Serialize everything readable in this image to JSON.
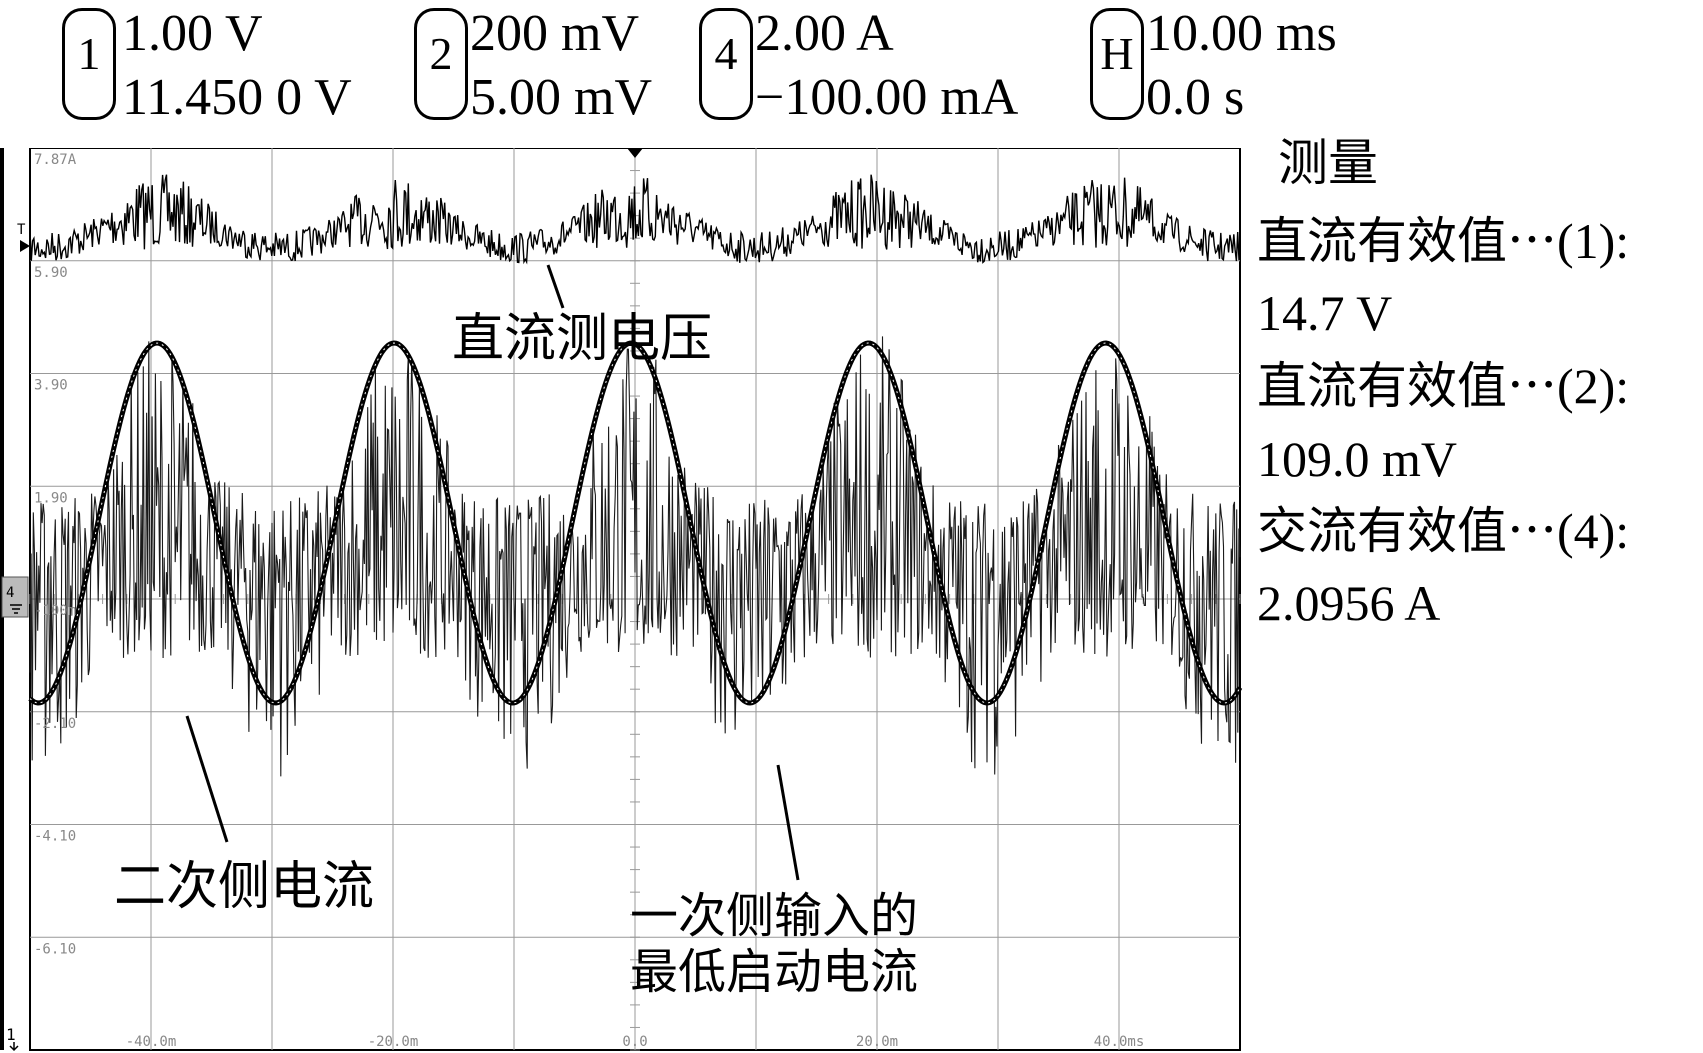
{
  "header": {
    "channels": [
      {
        "id": "1",
        "scale": "1.00 V",
        "offset": "11.450 0 V"
      },
      {
        "id": "2",
        "scale": "200 mV",
        "offset": "5.00 mV"
      },
      {
        "id": "4",
        "scale": "2.00 A",
        "offset": "−100.00 mA"
      },
      {
        "id": "H",
        "scale": "10.00 ms",
        "offset": "0.0 s"
      }
    ]
  },
  "measurements": {
    "title": "测量",
    "rows": [
      {
        "label": "直流有效值⋯(1):",
        "value": "14.7 V"
      },
      {
        "label": "直流有效值⋯(2):",
        "value": "109.0 mV"
      },
      {
        "label": "交流有效值⋯(4):",
        "value": "2.0956 A"
      }
    ]
  },
  "screen": {
    "y_ticks": [
      "7.87A",
      "5.90",
      "3.90",
      "1.90",
      "-100m",
      "-2.10",
      "-4.10",
      "-6.10"
    ],
    "x_ticks": [
      "-40.0m",
      "-20.0m",
      "0.0",
      "20.0m",
      "40.0ms"
    ],
    "channel4_marker": "4",
    "channel1_marker": "1",
    "trigger_marker": "T"
  },
  "annotations": {
    "dc_voltage": "直流测电压",
    "secondary_current": "二次侧电流",
    "primary_current_line1": "一次侧输入的",
    "primary_current_line2": "最低启动电流"
  }
}
